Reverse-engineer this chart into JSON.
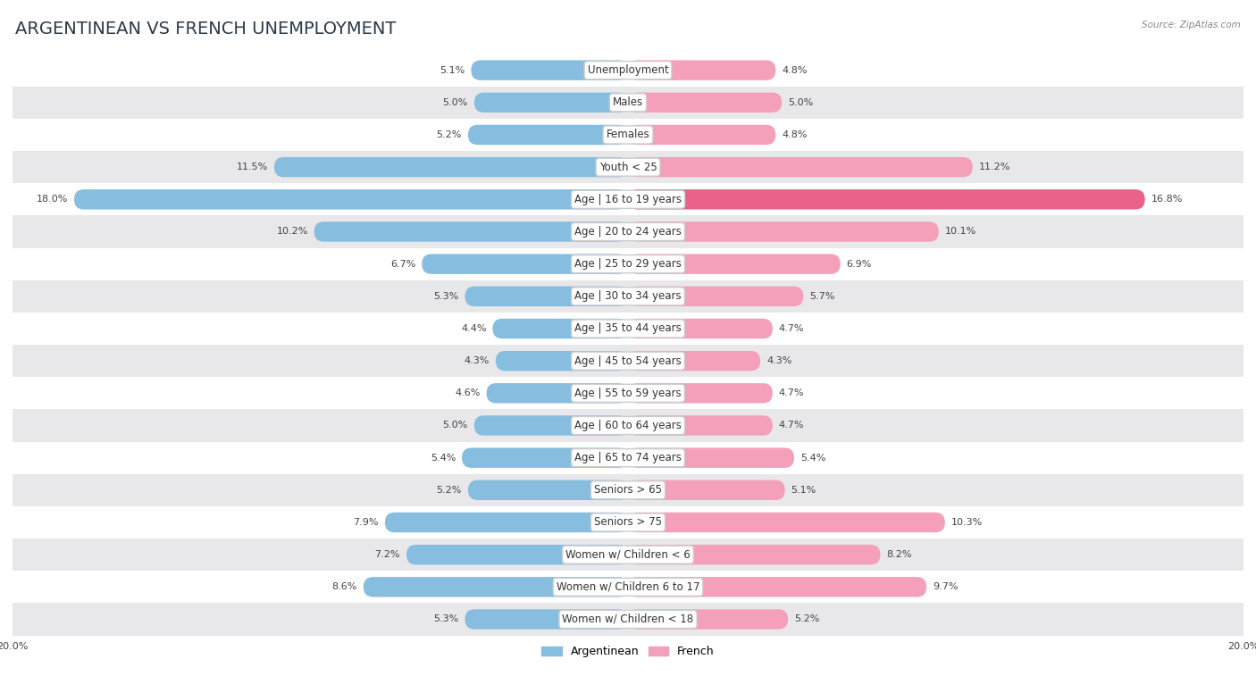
{
  "title": "ARGENTINEAN VS FRENCH UNEMPLOYMENT",
  "source": "Source: ZipAtlas.com",
  "categories": [
    "Unemployment",
    "Males",
    "Females",
    "Youth < 25",
    "Age | 16 to 19 years",
    "Age | 20 to 24 years",
    "Age | 25 to 29 years",
    "Age | 30 to 34 years",
    "Age | 35 to 44 years",
    "Age | 45 to 54 years",
    "Age | 55 to 59 years",
    "Age | 60 to 64 years",
    "Age | 65 to 74 years",
    "Seniors > 65",
    "Seniors > 75",
    "Women w/ Children < 6",
    "Women w/ Children 6 to 17",
    "Women w/ Children < 18"
  ],
  "argentinean": [
    5.1,
    5.0,
    5.2,
    11.5,
    18.0,
    10.2,
    6.7,
    5.3,
    4.4,
    4.3,
    4.6,
    5.0,
    5.4,
    5.2,
    7.9,
    7.2,
    8.6,
    5.3
  ],
  "french": [
    4.8,
    5.0,
    4.8,
    11.2,
    16.8,
    10.1,
    6.9,
    5.7,
    4.7,
    4.3,
    4.7,
    4.7,
    5.4,
    5.1,
    10.3,
    8.2,
    9.7,
    5.2
  ],
  "argentinean_color": "#87BEDF",
  "french_color": "#F4A0BA",
  "french_color_dark": "#E8628A",
  "bar_height": 0.62,
  "xlim": 20.0,
  "fig_bg_color": "#ffffff",
  "row_colors": [
    "#ffffff",
    "#e8e8ea"
  ],
  "title_fontsize": 14,
  "label_fontsize": 8.5,
  "value_fontsize": 8.0,
  "legend_fontsize": 9,
  "title_color": "#2b3a4a",
  "label_color": "#333333",
  "value_color": "#444444",
  "source_color": "#888888"
}
